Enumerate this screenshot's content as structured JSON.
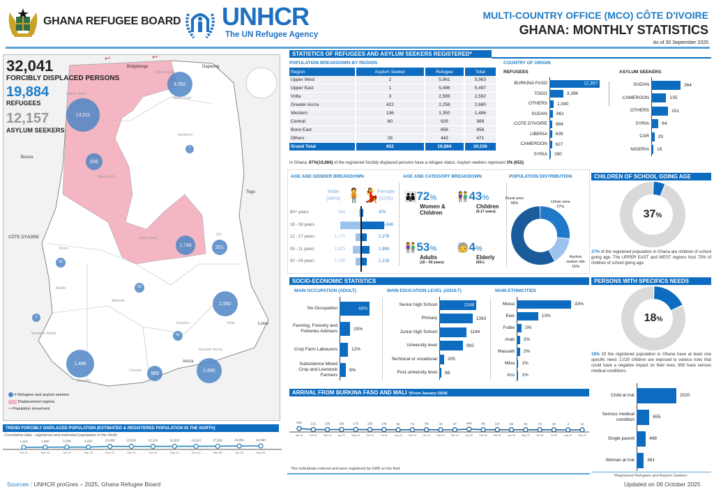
{
  "header": {
    "grb_name": "GHANA REFUGEE BOARD",
    "unhcr_name": "UNHCR",
    "unhcr_tagline": "The UN Refugee Agency",
    "office": "MULTI-COUNTRY OFFICE (MCO) CÔTE D'IVOIRE",
    "title": "GHANA: MONTHLY STATISTICS",
    "as_of": "As of 30 September 2025",
    "accent": "#0d6cc0"
  },
  "key_figures": {
    "fdp_value": "32,041",
    "fdp_label": "FORCIBLY DISPLACED PERSONS",
    "ref_value": "19,884",
    "ref_label": "REFUGEES",
    "as_value": "12,157",
    "as_label": "ASYLUM SEEKERS"
  },
  "map": {
    "labels": [
      "Bolgatanga",
      "Dapaong",
      "Upper West",
      "Upper East",
      "North East",
      "Northern",
      "Savannah",
      "Bono East",
      "Oti",
      "Bono",
      "Ahafo",
      "Ashanti",
      "Eastern",
      "Volta",
      "Western North",
      "Western",
      "Central",
      "Greater Accra",
      "Accra",
      "Lome",
      "Togo",
      "CÔTE D'IVOIRE",
      "Bouna"
    ],
    "circles": [
      "8,262",
      "13,011",
      "7",
      "836",
      "1,748",
      "201",
      "93",
      "93",
      "2,592",
      "1",
      "42",
      "1,486",
      "989",
      "2,680"
    ],
    "legend": [
      "# Refugees and asylum seekers",
      "Displacement regions",
      "Population movement"
    ],
    "colors": {
      "displacement": "#f4b6c2",
      "circle": "#4f86c6"
    }
  },
  "stats": {
    "title": "STATISTICS OF REFUGEES AND ASYLUM SEEKERS REGISTERED*",
    "region_title": "POPULATION BREAKDOWN BY REGION",
    "table_headers": [
      "Region",
      "Asylum Seeker",
      "Refugee",
      "Total"
    ],
    "rows": [
      [
        "Upper West",
        "2",
        "5,961",
        "5,963"
      ],
      [
        "Upper East",
        "1",
        "5,496",
        "5,497"
      ],
      [
        "Volta",
        "3",
        "2,589",
        "2,592"
      ],
      [
        "Greater Accra",
        "422",
        "2,258",
        "2,680"
      ],
      [
        "Western",
        "136",
        "1,350",
        "1,486"
      ],
      [
        "Central",
        "60",
        "929",
        "989"
      ],
      [
        "Bono East",
        "",
        "858",
        "858"
      ],
      [
        "Others",
        "28",
        "443",
        "471"
      ]
    ],
    "total": [
      "Grand Total",
      "652",
      "19,884",
      "20,536"
    ],
    "note_pre": "In Ghana, ",
    "note_bold": "97%(19,884)",
    "note_mid": " of the registered forcibly displaced persons have a refugee status. Asylum seekers represent ",
    "note_bold2": "3% (652)",
    "note_end": ".",
    "origin_title": "COUNTRY OF ORIGIN",
    "refugees_title": "REFUGEES",
    "refugees": [
      [
        "BURKINA FASO",
        12357,
        "12,357"
      ],
      [
        "TOGO",
        3396,
        "3,396"
      ],
      [
        "OTHERS",
        1040,
        "1,040"
      ],
      [
        "SUDAN",
        861,
        "861"
      ],
      [
        "COTE D'IVOIRE",
        684,
        "684"
      ],
      [
        "LIBERIA",
        639,
        "639"
      ],
      [
        "CAMEROON",
        627,
        "627"
      ],
      [
        "SYRIA",
        290,
        "290"
      ]
    ],
    "asylum_title": "ASYLUM SEEKERS",
    "asylum": [
      [
        "SUDAN",
        264,
        "264"
      ],
      [
        "CAMEROON",
        135,
        "135"
      ],
      [
        "OTHERS",
        151,
        "151"
      ],
      [
        "SYRIA",
        64,
        "64"
      ],
      [
        "CAR",
        29,
        "29"
      ],
      [
        "NIGERIA",
        19,
        "19"
      ]
    ]
  },
  "age_gender": {
    "title": "AGE AND GENDER BREAKDOWN",
    "male_label": "Male",
    "male_pct": "(49%)",
    "female_label": "Female",
    "female_pct": "(51%)",
    "groups": [
      "60+ years",
      "18 - 59 years",
      "12 - 17 years",
      "05 - 11 years",
      "00 - 04 years"
    ],
    "male": [
      304,
      5146,
      1171,
      1973,
      1225
    ],
    "female": [
      376,
      5646,
      1278,
      1999,
      1218
    ],
    "male_txt": [
      "304",
      "5,146",
      "1,171",
      "1,973",
      "1,225"
    ],
    "female_txt": [
      "376",
      "5,646",
      "1,278",
      "1,999",
      "1,218"
    ],
    "male_color": "#9cc3ee",
    "female_color": "#0d6cc0"
  },
  "age_category": {
    "title": "AGE AND CATEGORY BREAKDOWN",
    "items": [
      {
        "pct": "72",
        "unit": "%",
        "label": "Women &\nChildren",
        "sub": ""
      },
      {
        "pct": "43",
        "unit": "%",
        "label": "Children",
        "sub": "(0-17 years)"
      },
      {
        "pct": "53",
        "unit": "%",
        "label": "Adults",
        "sub": "(18 – 59 years)"
      },
      {
        "pct": "4",
        "unit": "%",
        "label": "Elderly",
        "sub": "(60+)"
      }
    ]
  },
  "population_distribution": {
    "title": "POPULATION DISTRIBUTION",
    "slices": [
      {
        "label": "Urban area",
        "pct": "27%",
        "value": 27,
        "color": "#1f78c8"
      },
      {
        "label": "Asylum seeker site",
        "pct": "15%",
        "value": 15,
        "color": "#9cc3ee"
      },
      {
        "label": "Rural area",
        "pct": "58%",
        "value": 58,
        "color": "#1a5b9c"
      }
    ]
  },
  "children_school": {
    "title": "CHILDREN OF SCHOOL GOING AGE",
    "pct_num": "37",
    "pct_unit": "%",
    "value": 37,
    "text_bold": "37%",
    "text": " of the registered population in Ghana are children of school going age. The UPPER EAST and WEST regions host 73% of children of school going age."
  },
  "specific_needs": {
    "title": "PERSONS WITH SPECIFICS NEEDS",
    "pct_num": "18",
    "pct_unit": "%",
    "value": 18,
    "text_bold": "18%",
    "text": " Of the registered population in Ghana have at least one specific need. 2,020 children are exposed to various risks that could have a negative impact on their lives. 655 have serious medical conditions.",
    "bars": [
      [
        "Child at risk",
        2020,
        "2020"
      ],
      [
        "Serious medical condition",
        655,
        "655"
      ],
      [
        "Single parent",
        468,
        "468"
      ],
      [
        "Woman at risk",
        361,
        "361"
      ]
    ],
    "footnote": "*Registered Refugees and Asylum Seekers"
  },
  "socio": {
    "title": "SOCIO-ECONOMIC STATISTICS",
    "occupation_title": "MAIN OCCUPATION (ADULT)",
    "occupation": [
      [
        "No Occupation",
        43,
        "43%"
      ],
      [
        "Farming, Forestry and Fisheries Advisers",
        15,
        "15%"
      ],
      [
        "Crop Farm Labourers",
        12,
        "12%"
      ],
      [
        "Subsistence Mixed Crop and Livestock Farmers",
        9,
        "9%"
      ]
    ],
    "education_title": "MAIN EDUCATION LEVEL (ADULT)",
    "education": [
      [
        "Senior high School",
        1548,
        "1548"
      ],
      [
        "Primary",
        1393,
        "1393"
      ],
      [
        "Junior high School",
        1144,
        "1144"
      ],
      [
        "University level",
        992,
        "992"
      ],
      [
        "Technical or vocational",
        205,
        "205"
      ],
      [
        "Post university level",
        88,
        "88"
      ]
    ],
    "ethnicity_title": "MAIN ETHNICITIES",
    "ethnicity": [
      [
        "Mossi",
        33,
        "33%"
      ],
      [
        "Ewe",
        13,
        "13%"
      ],
      [
        "Fulbe",
        3,
        "3%"
      ],
      [
        "Arab",
        2,
        "2%"
      ],
      [
        "Massalit",
        2,
        "2%"
      ],
      [
        "Mina",
        1,
        "1%"
      ],
      [
        "Kru",
        1,
        "1%"
      ]
    ]
  },
  "chart_data": [
    {
      "type": "line",
      "title": "ARRIVAL FROM BURKINA FASO AND MALI",
      "subtitle": "*(From January 2024)",
      "categories": [
        "Jan 24",
        "Feb 24",
        "Mar 24",
        "Apr 24",
        "May 24",
        "Jun 24",
        "Jul 24",
        "Aug 24",
        "Sep 24",
        "Oct 24",
        "Nov 24",
        "Dec 24",
        "Jan 25",
        "Feb 25",
        "Mar 25",
        "Apr 25",
        "May 25",
        "Jun 25",
        "Jul 25",
        "Aug 25",
        "Sep 25"
      ],
      "values": [
        665,
        132,
        166,
        166,
        179,
        155,
        148,
        65,
        74,
        89,
        40,
        67,
        356,
        88,
        114,
        83,
        52,
        73,
        40,
        3,
        14
      ],
      "note": "*the individuals entered and were registered by GRB on the field",
      "color": "#1f5f99"
    },
    {
      "type": "line",
      "title": "TREND FORCIBLY DISPLACED POPULATION",
      "subtitle": "(ESTIMATED & REGISTERED POPULATION IN THE NORTH)",
      "caption": "Cumulative data - registered and estimated population in the North",
      "categories": [
        "Oct 22",
        "Mar 23",
        "Jun 23",
        "Sep 23",
        "Dec 23",
        "Mar 24",
        "Jun 24",
        "Sep 24",
        "Dec 24",
        "Mar 25",
        "Jun 25",
        "Aug 25"
      ],
      "values": [
        1110,
        1800,
        3298,
        3320,
        15000,
        15092,
        15101,
        16923,
        16923,
        17666,
        22801,
        23060
      ],
      "labels": [
        "1,110",
        "1,800",
        "3,298",
        "3,320",
        "15,000",
        "15,092",
        "15,101",
        "16,923",
        "16,923",
        "17,666",
        "22,801",
        "23,060"
      ],
      "color": "#2a84c0"
    }
  ],
  "footer": {
    "sources_label": "Sources",
    "sources": " : UNHCR proGres – 2025, Ghana Refugee Board",
    "updated": "Updated on 09 October 2025"
  }
}
